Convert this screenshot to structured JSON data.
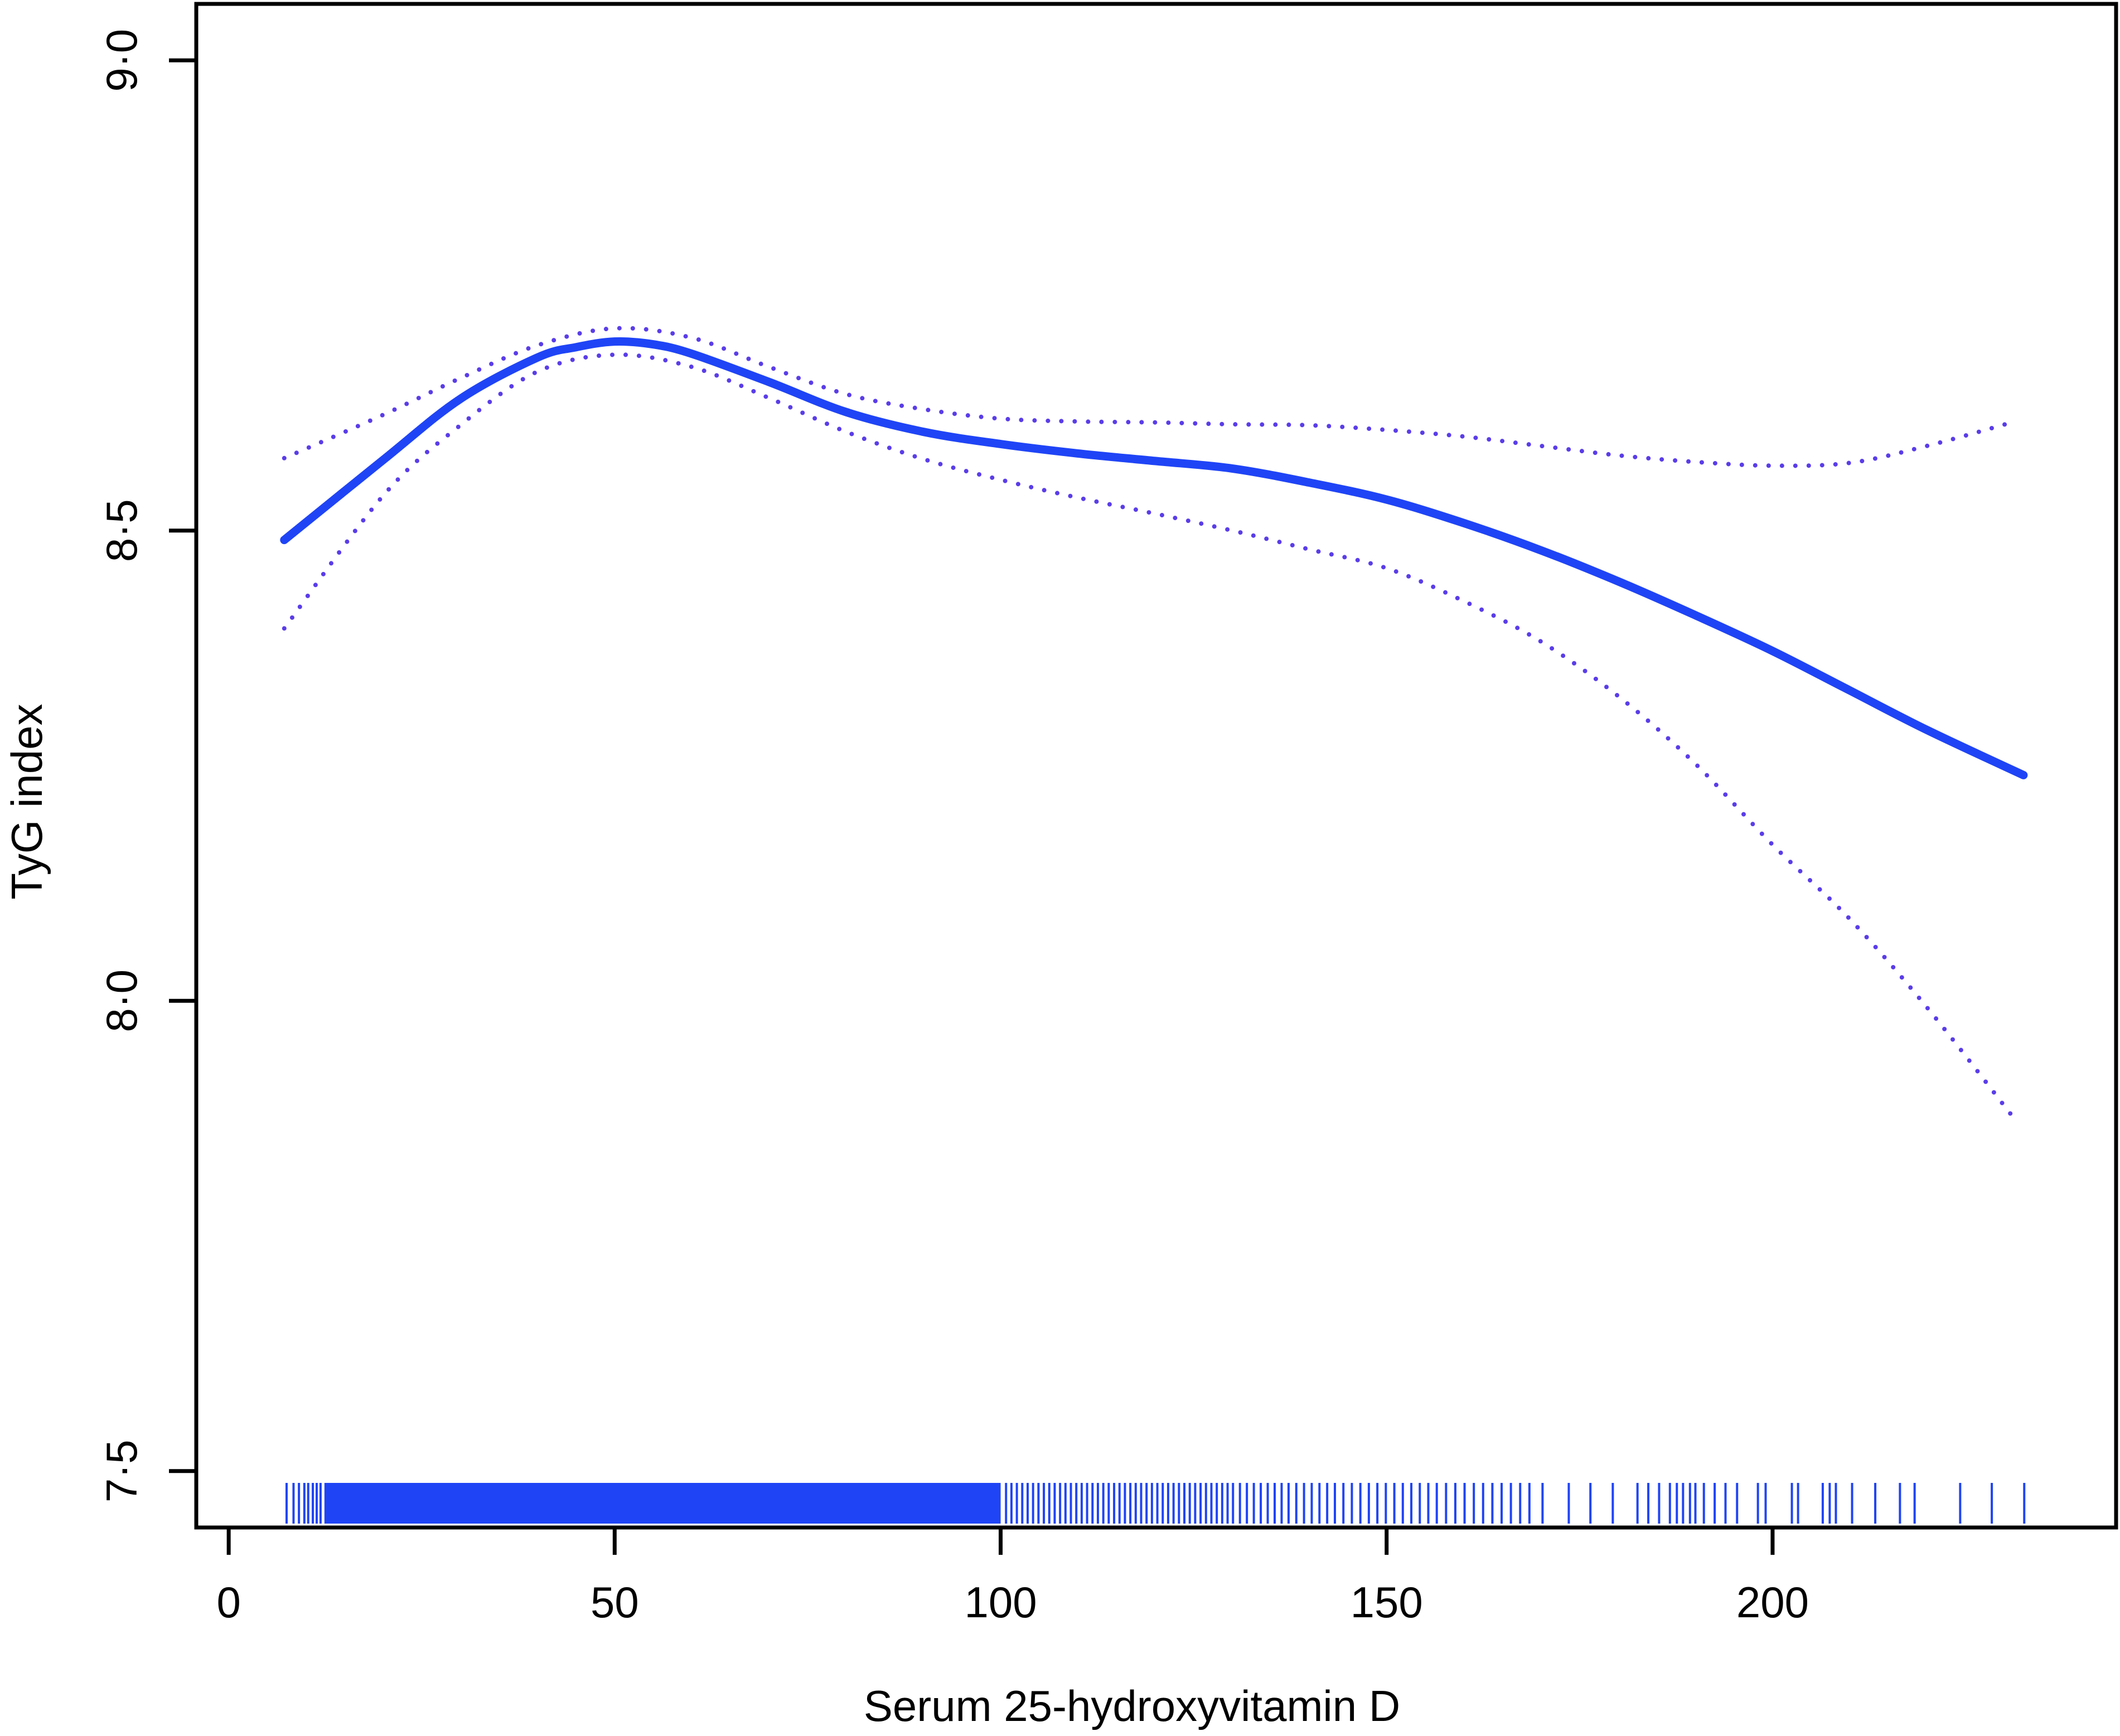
{
  "chart_data": {
    "type": "line",
    "title": "",
    "xlabel": "Serum 25-hydroxyvitamin D",
    "ylabel": "TyG index",
    "xlim": [
      -4.2,
      244.5
    ],
    "ylim": [
      7.44,
      9.06
    ],
    "xticks": [
      0,
      50,
      100,
      150,
      200
    ],
    "xtick_labels": [
      "0",
      "50",
      "100",
      "150",
      "200"
    ],
    "yticks": [
      7.5,
      8.0,
      8.5,
      9.0
    ],
    "ytick_labels": [
      "7·5",
      "8·0",
      "8·5",
      "9·0"
    ],
    "grid": false,
    "colors": {
      "fit": "#1f44f6",
      "interval": "#5a3de8",
      "rug": "#1f44f6",
      "axis": "#000000"
    },
    "series": [
      {
        "style": "solid",
        "x": [
          7.2,
          20,
          30,
          40,
          45,
          50,
          55,
          60,
          70,
          80,
          90,
          100,
          110,
          120,
          130,
          140,
          150,
          160,
          170,
          180,
          190,
          200,
          210,
          220,
          232.5
        ],
        "y": [
          8.49,
          8.575,
          8.64,
          8.684,
          8.695,
          8.701,
          8.698,
          8.688,
          8.658,
          8.626,
          8.605,
          8.592,
          8.582,
          8.574,
          8.566,
          8.551,
          8.533,
          8.508,
          8.479,
          8.446,
          8.41,
          8.372,
          8.33,
          8.288,
          8.24
        ]
      },
      {
        "style": "dotted",
        "x": [
          7.2,
          20,
          30,
          40,
          50,
          60,
          70,
          80,
          90,
          100,
          110,
          120,
          130,
          140,
          150,
          160,
          170,
          180,
          190,
          200,
          210,
          220,
          231
        ],
        "y": [
          8.577,
          8.623,
          8.662,
          8.697,
          8.715,
          8.705,
          8.674,
          8.645,
          8.629,
          8.619,
          8.616,
          8.615,
          8.613,
          8.612,
          8.607,
          8.6,
          8.59,
          8.58,
          8.573,
          8.569,
          8.572,
          8.59,
          8.615
        ]
      },
      {
        "style": "dotted",
        "x": [
          7.2,
          20,
          30,
          40,
          50,
          60,
          70,
          80,
          90,
          100,
          110,
          120,
          130,
          140,
          150,
          160,
          170,
          180,
          190,
          200,
          210,
          220,
          231
        ],
        "y": [
          8.396,
          8.537,
          8.612,
          8.669,
          8.687,
          8.674,
          8.641,
          8.605,
          8.576,
          8.554,
          8.535,
          8.518,
          8.5,
          8.48,
          8.46,
          8.425,
          8.382,
          8.324,
          8.252,
          8.166,
          8.087,
          7.993,
          7.878
        ]
      }
    ],
    "rug": {
      "dense_range": [
        12.4,
        100
      ],
      "x": [
        7.5,
        8.4,
        9.1,
        9.8,
        10.3,
        10.9,
        11.4,
        11.9,
        100.7,
        101.4,
        102.1,
        102.8,
        103.5,
        104.2,
        104.9,
        105.6,
        106.3,
        107.0,
        107.7,
        108.4,
        109.1,
        109.8,
        110.5,
        111.2,
        111.9,
        112.6,
        113.3,
        114.0,
        114.7,
        115.4,
        116.1,
        116.8,
        117.5,
        118.2,
        118.9,
        119.6,
        120.3,
        121.0,
        121.7,
        122.4,
        123.1,
        123.8,
        124.5,
        125.2,
        125.9,
        126.6,
        127.3,
        128.0,
        128.7,
        129.4,
        130.1,
        131.0,
        131.9,
        132.8,
        133.7,
        134.6,
        135.5,
        136.4,
        137.3,
        138.3,
        139.3,
        140.3,
        141.3,
        142.3,
        143.3,
        144.4,
        145.5,
        146.6,
        147.7,
        148.8,
        149.9,
        151.0,
        152.1,
        153.2,
        154.3,
        155.4,
        156.5,
        157.7,
        158.9,
        160.1,
        161.3,
        162.5,
        163.7,
        164.9,
        166.1,
        167.3,
        168.5,
        170.2,
        173.6,
        176.4,
        179.3,
        182.5,
        183.9,
        185.3,
        186.7,
        187.6,
        188.4,
        189.3,
        190.0,
        191.1,
        192.5,
        193.9,
        195.4,
        198.1,
        199.1,
        202.5,
        203.3,
        206.5,
        207.4,
        208.2,
        210.3,
        213.3,
        216.5,
        218.4,
        224.3,
        228.4,
        232.6
      ]
    }
  }
}
